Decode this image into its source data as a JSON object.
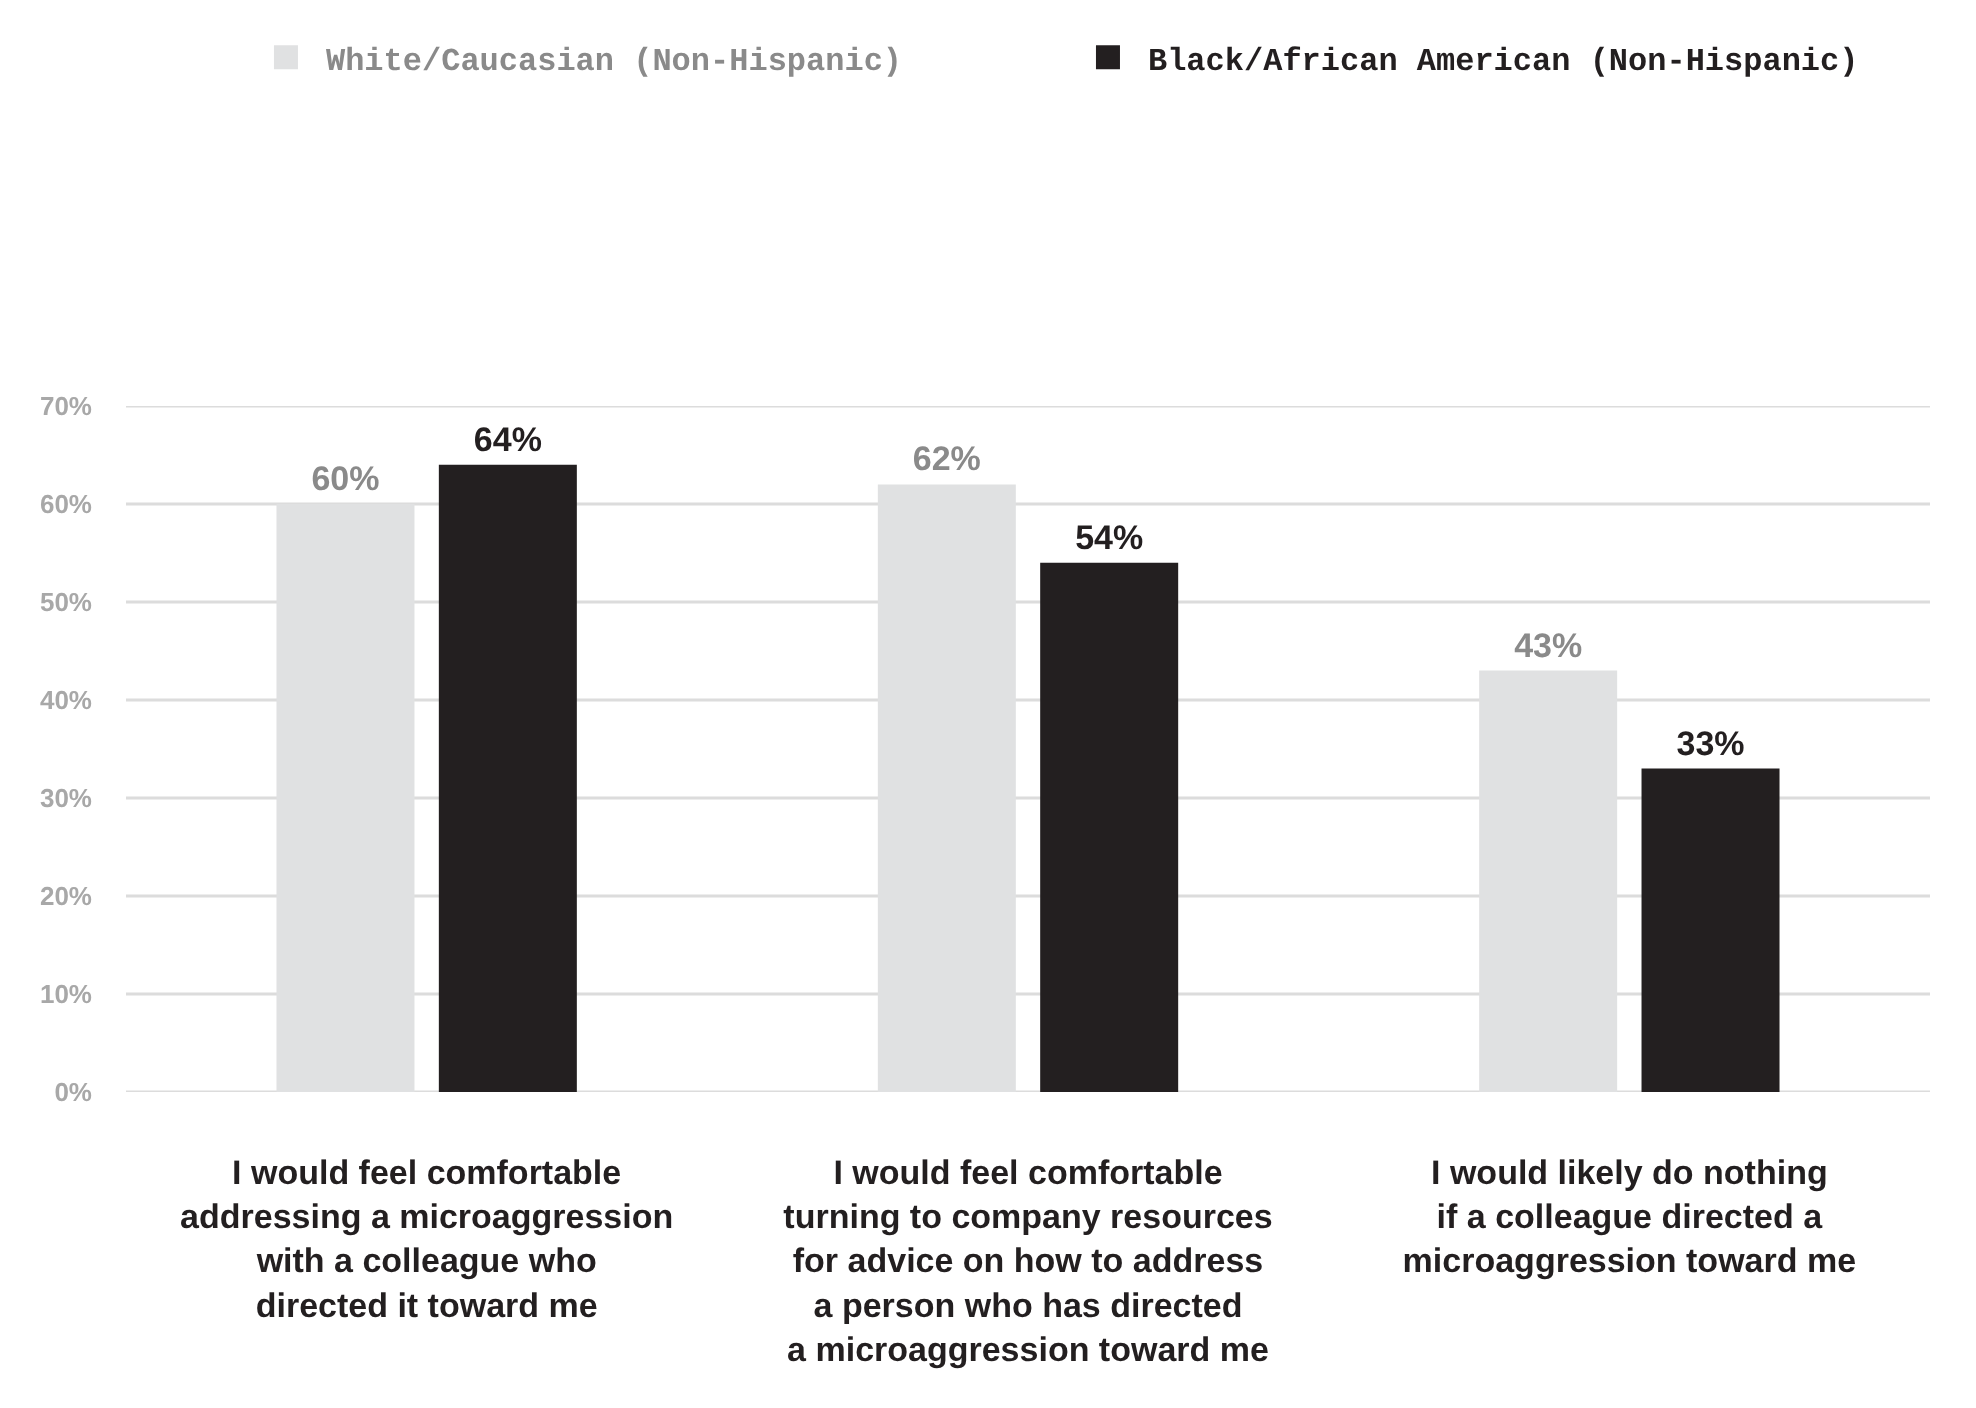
{
  "chart_data": {
    "type": "bar",
    "categories": [
      "I would feel comfortable\naddressing a microaggression\nwith a colleague who\ndirected it toward me",
      "I would feel comfortable\nturning to company resources\nfor advice on how to address\na person who has directed\na microaggression toward me",
      "I would likely do nothing\nif a colleague directed a\nmicroaggression toward me"
    ],
    "series": [
      {
        "name": "White/Caucasian (Non-Hispanic)",
        "color": "#e0e1e2",
        "values": [
          60,
          62,
          43
        ],
        "value_labels": [
          "60%",
          "62%",
          "43%"
        ]
      },
      {
        "name": "Black/African American (Non-Hispanic)",
        "color": "#231f20",
        "values": [
          64,
          54,
          33
        ],
        "value_labels": [
          "64%",
          "54%",
          "33%"
        ]
      }
    ],
    "ylim": [
      0,
      70
    ],
    "yticks": [
      {
        "value": 0,
        "label": "0%"
      },
      {
        "value": 10,
        "label": "10%"
      },
      {
        "value": 20,
        "label": "20%"
      },
      {
        "value": 30,
        "label": "30%"
      },
      {
        "value": 40,
        "label": "40%"
      },
      {
        "value": 50,
        "label": "50%"
      },
      {
        "value": 60,
        "label": "60%"
      },
      {
        "value": 70,
        "label": "70%"
      }
    ],
    "grid": "y",
    "legend": "top"
  }
}
